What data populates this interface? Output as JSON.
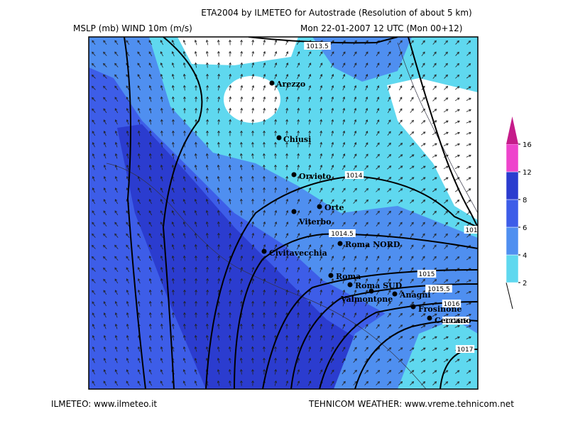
{
  "header": {
    "title": "ETA2004 by ILMETEO for Autostrade (Resolution of about 5 km)",
    "left": "MSLP (mb)  WIND 10m (m/s)",
    "right": "Mon 22-01-2007 12 UTC (Mon 00+12)"
  },
  "cities": [
    "Arezzo",
    "Chiusi",
    "Orvieto",
    "Orte",
    "Viterbo",
    "Roma NORD",
    "Civitavecchia",
    "Roma",
    "Roma SUD",
    "Valmontone",
    "Anagni",
    "Frosinone",
    "Ceccano"
  ],
  "isobars": [
    "1013.5",
    "1014",
    "1014.5",
    "1015",
    "1015.5",
    "1016",
    "1016.5",
    "1017",
    "101"
  ],
  "legend": {
    "ticks": [
      2,
      4,
      6,
      8,
      12,
      16
    ],
    "colors": [
      "#5fd8ef",
      "#4f8ff0",
      "#3d5de8",
      "#2b3ccf",
      "#ee44cc",
      "#c51c8a"
    ]
  },
  "footer": {
    "left": "ILMETEO: www.ilmeteo.it",
    "right": "TEHNICOM WEATHER: www.vreme.tehnicom.net"
  }
}
